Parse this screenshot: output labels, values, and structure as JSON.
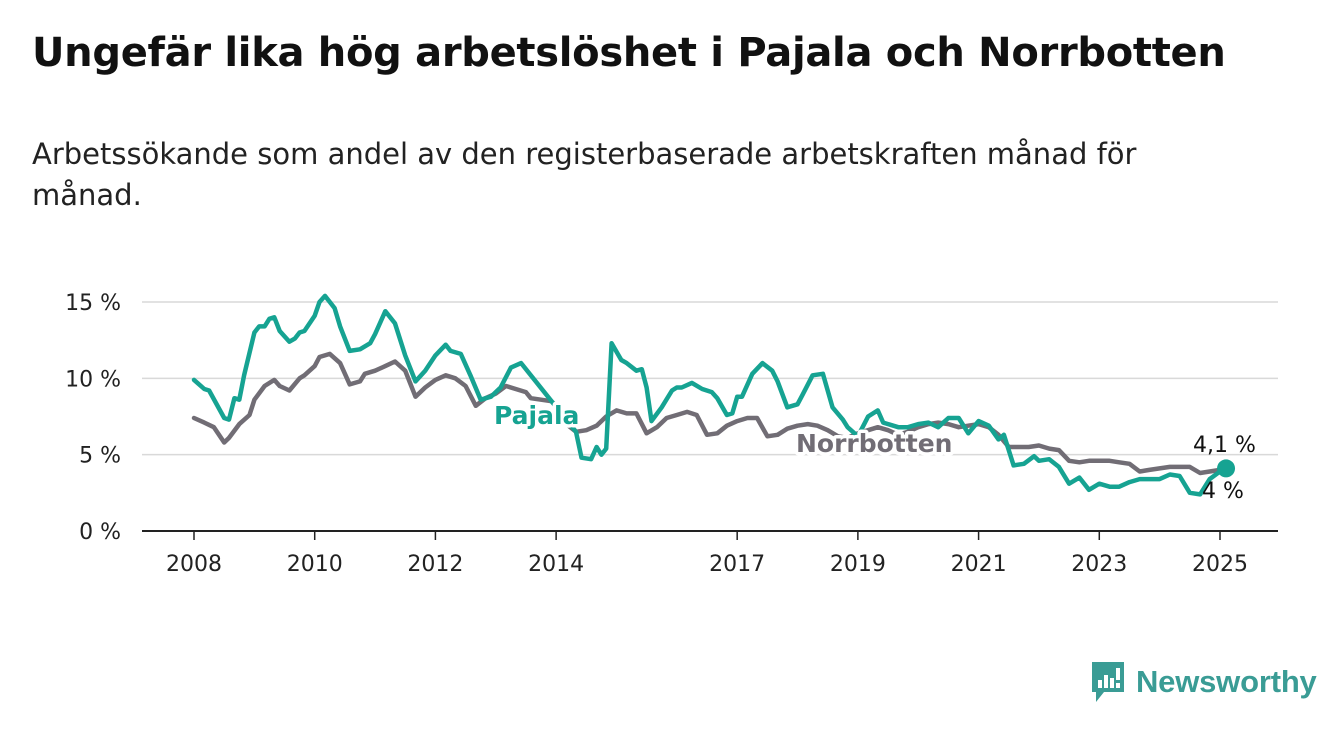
{
  "header": {
    "title": "Ungefär lika hög arbetslöshet i Pajala och Norrbotten",
    "subtitle": "Arbetssökande som andel av den registerbaserade arbetskraften månad för månad."
  },
  "brand": {
    "name": "Newsworthy",
    "color": "#3a9c95"
  },
  "chart_data": {
    "type": "line",
    "title": "Ungefär lika hög arbetslöshet i Pajala och Norrbotten",
    "subtitle": "Arbetssökande som andel av den registerbaserade arbetskraften månad för månad.",
    "xlabel": "",
    "ylabel": "",
    "ylim": [
      0,
      15
    ],
    "xlim": [
      2007.75,
      2025.95
    ],
    "yticks": [
      0,
      5,
      10,
      15
    ],
    "ytick_labels": [
      "0 %",
      "5 %",
      "10 %",
      "15 %"
    ],
    "xticks": [
      2008,
      2010,
      2012,
      2014,
      2017,
      2019,
      2021,
      2023,
      2025
    ],
    "xtick_labels": [
      "2008",
      "2010",
      "2012",
      "2014",
      "2017",
      "2019",
      "2021",
      "2023",
      "2025"
    ],
    "grid": true,
    "legend": "inline labels",
    "series": [
      {
        "name": "Norrbotten",
        "color": "#716d75",
        "x": [
          2008.0,
          2008.17,
          2008.33,
          2008.5,
          2008.58,
          2008.75,
          2008.92,
          2009.0,
          2009.17,
          2009.33,
          2009.42,
          2009.58,
          2009.75,
          2009.83,
          2010.0,
          2010.08,
          2010.25,
          2010.42,
          2010.58,
          2010.75,
          2010.83,
          2011.0,
          2011.17,
          2011.33,
          2011.5,
          2011.67,
          2011.83,
          2012.0,
          2012.17,
          2012.33,
          2012.5,
          2012.67,
          2012.83,
          2013.0,
          2013.17,
          2013.33,
          2013.5,
          2013.58,
          2013.75,
          2013.92,
          2014.0,
          2014.17,
          2014.33,
          2014.5,
          2014.67,
          2014.83,
          2015.0,
          2015.17,
          2015.33,
          2015.5,
          2015.67,
          2015.83,
          2016.0,
          2016.17,
          2016.33,
          2016.5,
          2016.67,
          2016.83,
          2017.0,
          2017.17,
          2017.33,
          2017.5,
          2017.67,
          2017.83,
          2018.0,
          2018.17,
          2018.33,
          2018.5,
          2018.67,
          2018.83,
          2019.0,
          2019.17,
          2019.33,
          2019.5,
          2019.67,
          2019.83,
          2020.0,
          2020.17,
          2020.33,
          2020.5,
          2020.67,
          2020.83,
          2021.0,
          2021.17,
          2021.33,
          2021.5,
          2021.67,
          2021.83,
          2022.0,
          2022.17,
          2022.33,
          2022.5,
          2022.67,
          2022.83,
          2023.0,
          2023.17,
          2023.33,
          2023.5,
          2023.67,
          2023.83,
          2024.0,
          2024.17,
          2024.33,
          2024.5,
          2024.67,
          2024.83,
          2025.0,
          2025.1
        ],
        "values": [
          7.4,
          7.1,
          6.8,
          5.8,
          6.1,
          7.0,
          7.6,
          8.6,
          9.5,
          9.9,
          9.5,
          9.2,
          10.0,
          10.2,
          10.8,
          11.4,
          11.6,
          11.0,
          9.6,
          9.8,
          10.3,
          10.5,
          10.8,
          11.1,
          10.5,
          8.8,
          9.4,
          9.9,
          10.2,
          10.0,
          9.5,
          8.2,
          8.7,
          9.0,
          9.5,
          9.3,
          9.1,
          8.7,
          8.6,
          8.5,
          8.2,
          7.0,
          6.5,
          6.6,
          6.9,
          7.5,
          7.9,
          7.7,
          7.7,
          6.4,
          6.8,
          7.4,
          7.6,
          7.8,
          7.6,
          6.3,
          6.4,
          6.9,
          7.2,
          7.4,
          7.4,
          6.2,
          6.3,
          6.7,
          6.9,
          7.0,
          6.9,
          6.6,
          6.2,
          6.1,
          6.4,
          6.6,
          6.8,
          6.6,
          6.3,
          6.5,
          6.8,
          7.0,
          7.1,
          7.0,
          6.8,
          6.9,
          7.0,
          6.8,
          6.3,
          5.5,
          5.5,
          5.5,
          5.6,
          5.4,
          5.3,
          4.6,
          4.5,
          4.6,
          4.6,
          4.6,
          4.5,
          4.4,
          3.9,
          4.0,
          4.1,
          4.2,
          4.2,
          4.2,
          3.8,
          3.9,
          4.0,
          4.0
        ]
      },
      {
        "name": "Pajala",
        "color": "#16a392",
        "x": [
          2008.0,
          2008.17,
          2008.25,
          2008.5,
          2008.58,
          2008.67,
          2008.75,
          2008.83,
          2009.0,
          2009.08,
          2009.17,
          2009.25,
          2009.33,
          2009.42,
          2009.58,
          2009.67,
          2009.75,
          2009.83,
          2010.0,
          2010.08,
          2010.17,
          2010.33,
          2010.42,
          2010.58,
          2010.75,
          2010.92,
          2011.0,
          2011.17,
          2011.33,
          2011.5,
          2011.67,
          2011.83,
          2012.0,
          2012.17,
          2012.25,
          2012.42,
          2012.58,
          2012.75,
          2012.92,
          2013.08,
          2013.25,
          2013.42,
          2014.33,
          2014.42,
          2014.58,
          2014.67,
          2014.75,
          2014.83,
          2014.92,
          2015.08,
          2015.17,
          2015.33,
          2015.42,
          2015.5,
          2015.58,
          2015.75,
          2015.92,
          2016.0,
          2016.08,
          2016.25,
          2016.42,
          2016.58,
          2016.67,
          2016.83,
          2016.92,
          2017.0,
          2017.08,
          2017.25,
          2017.42,
          2017.58,
          2017.67,
          2017.83,
          2018.0,
          2018.08,
          2018.25,
          2018.42,
          2018.58,
          2018.75,
          2018.83,
          2019.0,
          2019.17,
          2019.33,
          2019.42,
          2019.67,
          2019.83,
          2020.0,
          2020.17,
          2020.33,
          2020.5,
          2020.67,
          2020.83,
          2021.0,
          2021.17,
          2021.33,
          2021.42,
          2021.58,
          2021.75,
          2021.92,
          2022.0,
          2022.17,
          2022.33,
          2022.5,
          2022.67,
          2022.83,
          2023.0,
          2023.17,
          2023.33,
          2023.5,
          2023.67,
          2023.83,
          2024.0,
          2024.17,
          2024.33,
          2024.5,
          2024.67,
          2024.83,
          2025.0,
          2025.1
        ],
        "values": [
          9.9,
          9.3,
          9.2,
          7.4,
          7.3,
          8.7,
          8.6,
          10.2,
          13.0,
          13.4,
          13.4,
          13.9,
          14.0,
          13.1,
          12.4,
          12.6,
          13.0,
          13.1,
          14.1,
          15.0,
          15.4,
          14.6,
          13.4,
          11.8,
          11.9,
          12.3,
          12.9,
          14.4,
          13.6,
          11.5,
          9.8,
          10.5,
          11.5,
          12.2,
          11.8,
          11.6,
          10.2,
          8.6,
          8.8,
          9.4,
          10.7,
          11.0,
          6.5,
          4.8,
          4.7,
          5.5,
          5.0,
          5.4,
          12.3,
          11.2,
          11.0,
          10.5,
          10.6,
          9.4,
          7.2,
          8.1,
          9.2,
          9.4,
          9.4,
          9.7,
          9.3,
          9.1,
          8.7,
          7.6,
          7.7,
          8.8,
          8.8,
          10.3,
          11.0,
          10.5,
          9.8,
          8.1,
          8.3,
          8.9,
          10.2,
          10.3,
          8.1,
          7.3,
          6.8,
          6.2,
          7.5,
          7.9,
          7.1,
          6.8,
          6.8,
          7.0,
          7.1,
          6.8,
          7.4,
          7.4,
          6.4,
          7.2,
          6.9,
          6.0,
          6.3,
          4.3,
          4.4,
          4.9,
          4.6,
          4.7,
          4.2,
          3.1,
          3.5,
          2.7,
          3.1,
          2.9,
          2.9,
          3.2,
          3.4,
          3.4,
          3.4,
          3.7,
          3.6,
          2.5,
          2.4,
          3.4,
          3.9,
          4.1
        ]
      }
    ],
    "annotations": [
      {
        "text": "Pajala",
        "series": "Pajala"
      },
      {
        "text": "Norrbotten",
        "series": "Norrbotten"
      },
      {
        "text": "4,1 %",
        "series": "Pajala",
        "x": 2025.1,
        "y": 4.1
      },
      {
        "text": "4 %",
        "series": "Norrbotten",
        "x": 2025.1,
        "y": 4.0
      }
    ]
  }
}
